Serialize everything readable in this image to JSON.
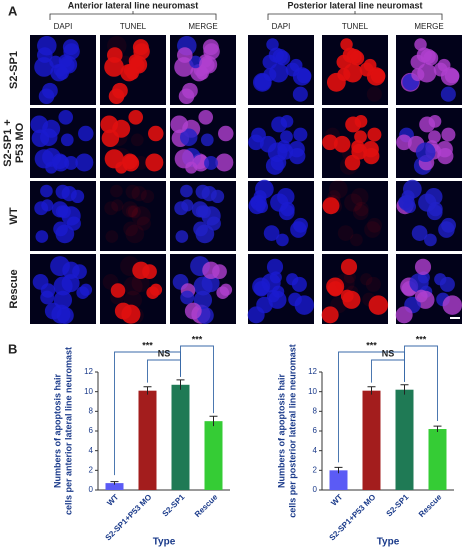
{
  "figure": {
    "panel_a": "A",
    "panel_b": "B",
    "groups": [
      {
        "title": "Anterior lateral line neuromast",
        "columns": [
          "DAPI",
          "TUNEL",
          "MERGE"
        ]
      },
      {
        "title": "Posterior lateral line neuromast",
        "columns": [
          "DAPI",
          "TUNEL",
          "MERGE"
        ]
      }
    ],
    "rows": [
      [
        "S2-SP1"
      ],
      [
        "S2-SP1 +",
        "P53 MO"
      ],
      [
        "WT"
      ],
      [
        "Rescue"
      ]
    ]
  },
  "chart_data": [
    {
      "type": "bar",
      "ylabel": [
        "Numbers of apoptosis hair",
        "cells per anterior lateral line neuromast"
      ],
      "xlabel": "Type",
      "categories": [
        "WT",
        "S2-SP1+P53 MO",
        "S2-SP1",
        "Rescue"
      ],
      "values": [
        0.7,
        10.1,
        10.7,
        7.0
      ],
      "errors": [
        0.15,
        0.4,
        0.5,
        0.5
      ],
      "colors": [
        "#5b5bf5",
        "#a31d1d",
        "#1f7a55",
        "#35cc35"
      ],
      "ylim": [
        0,
        12
      ],
      "yticks": [
        0,
        2,
        4,
        6,
        8,
        10,
        12
      ],
      "annotations": [
        "***",
        "NS",
        "***"
      ]
    },
    {
      "type": "bar",
      "ylabel": [
        "Numbers of apoptosis hair",
        "cells per posterior lateral line neuromast"
      ],
      "xlabel": "Type",
      "categories": [
        "WT",
        "S2-SP1+P53 MO",
        "S2-SP1",
        "Rescue"
      ],
      "values": [
        2.0,
        10.1,
        10.2,
        6.2
      ],
      "errors": [
        0.3,
        0.4,
        0.5,
        0.3
      ],
      "colors": [
        "#5b5bf5",
        "#a31d1d",
        "#1f7a55",
        "#35cc35"
      ],
      "ylim": [
        0,
        12
      ],
      "yticks": [
        0,
        2,
        4,
        6,
        8,
        10,
        12
      ],
      "annotations": [
        "***",
        "NS",
        "***"
      ]
    }
  ]
}
